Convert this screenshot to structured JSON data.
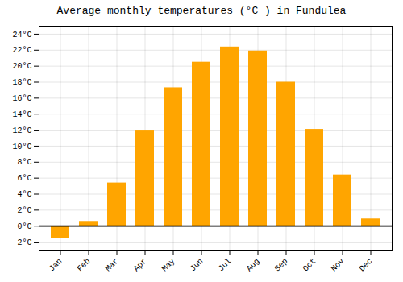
{
  "chart_data": {
    "type": "bar",
    "title": "Average monthly temperatures (°C ) in Fundulea",
    "categories": [
      "Jan",
      "Feb",
      "Mar",
      "Apr",
      "May",
      "Jun",
      "Jul",
      "Aug",
      "Sep",
      "Oct",
      "Nov",
      "Dec"
    ],
    "values": [
      -1.5,
      0.6,
      5.4,
      12.0,
      17.3,
      20.5,
      22.4,
      21.9,
      18.0,
      12.1,
      6.4,
      0.9
    ],
    "color": "#FFA500",
    "ylim": [
      -3,
      25
    ],
    "yticks": [
      {
        "value": -2,
        "label": "-2°C"
      },
      {
        "value": 0,
        "label": "0°C"
      },
      {
        "value": 2,
        "label": "2°C"
      },
      {
        "value": 4,
        "label": "4°C"
      },
      {
        "value": 6,
        "label": "6°C"
      },
      {
        "value": 8,
        "label": "8°C"
      },
      {
        "value": 10,
        "label": "10°C"
      },
      {
        "value": 12,
        "label": "12°C"
      },
      {
        "value": 14,
        "label": "14°C"
      },
      {
        "value": 16,
        "label": "16°C"
      },
      {
        "value": 18,
        "label": "18°C"
      },
      {
        "value": 20,
        "label": "20°C"
      },
      {
        "value": 22,
        "label": "22°C"
      },
      {
        "value": 24,
        "label": "24°C"
      }
    ],
    "grid": true
  }
}
